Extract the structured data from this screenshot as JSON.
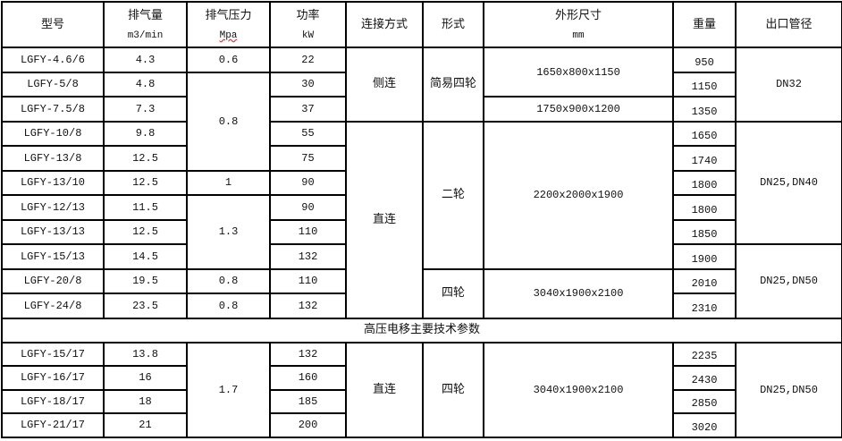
{
  "header": {
    "model": "型号",
    "flow": "排气量",
    "flow_unit": "m3/min",
    "pressure": "排气压力",
    "pressure_unit": "Mpa",
    "power": "功率",
    "power_unit": "kW",
    "connection": "连接方式",
    "form": "形式",
    "dimensions": "外形尺寸",
    "dimensions_unit": "mm",
    "weight": "重量",
    "outlet": "出口管径"
  },
  "rows": [
    {
      "model": "LGFY-4.6/6",
      "flow": "4.3",
      "pressure": "0.6",
      "power": "22",
      "connection": "侧连",
      "form": "简易四轮",
      "dimensions": "1650x800x1150",
      "weight": "950",
      "outlet": "DN32"
    },
    {
      "model": "LGFY-5/8",
      "flow": "4.8",
      "pressure": "0.8",
      "power": "30",
      "weight": "1150"
    },
    {
      "model": "LGFY-7.5/8",
      "flow": "7.3",
      "power": "37",
      "dimensions": "1750x900x1200",
      "weight": "1350"
    },
    {
      "model": "LGFY-10/8",
      "flow": "9.8",
      "power": "55",
      "connection": "直连",
      "form": "二轮",
      "dimensions": "2200x2000x1900",
      "weight": "1650",
      "outlet": "DN25,DN40"
    },
    {
      "model": "LGFY-13/8",
      "flow": "12.5",
      "power": "75",
      "weight": "1740"
    },
    {
      "model": "LGFY-13/10",
      "flow": "12.5",
      "pressure": "1",
      "power": "90",
      "weight": "1800"
    },
    {
      "model": "LGFY-12/13",
      "flow": "11.5",
      "pressure": "1.3",
      "power": "90",
      "weight": "1800"
    },
    {
      "model": "LGFY-13/13",
      "flow": "12.5",
      "power": "110",
      "weight": "1850"
    },
    {
      "model": "LGFY-15/13",
      "flow": "14.5",
      "power": "132",
      "weight": "1900",
      "outlet": "DN25,DN50"
    },
    {
      "model": "LGFY-20/8",
      "flow": "19.5",
      "pressure": "0.8",
      "power": "110",
      "form": "四轮",
      "dimensions": "3040x1900x2100",
      "weight": "2010"
    },
    {
      "model": "LGFY-24/8",
      "flow": "23.5",
      "pressure": "0.8",
      "power": "132",
      "weight": "2310"
    }
  ],
  "section_title": "高压电移主要技术参数",
  "hv_rows": [
    {
      "model": "LGFY-15/17",
      "flow": "13.8",
      "pressure": "1.7",
      "power": "132",
      "connection": "直连",
      "form": "四轮",
      "dimensions": "3040x1900x2100",
      "weight": "2235",
      "outlet": "DN25,DN50"
    },
    {
      "model": "LGFY-16/17",
      "flow": "16",
      "power": "160",
      "weight": "2430"
    },
    {
      "model": "LGFY-18/17",
      "flow": "18",
      "power": "185",
      "weight": "2850"
    },
    {
      "model": "LGFY-21/17",
      "flow": "21",
      "power": "200",
      "weight": "3020"
    }
  ]
}
